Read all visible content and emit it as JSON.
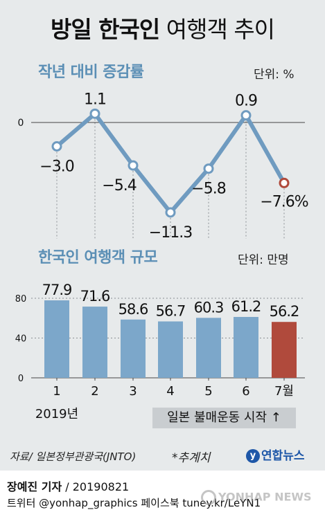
{
  "title": {
    "bold": "방일 한국인",
    "light": "여행객 추이"
  },
  "line_section": {
    "heading": "작년 대비 증감률",
    "unit": "단위: %"
  },
  "bar_section": {
    "heading": "한국인 여행객 규모",
    "unit": "단위: 만명"
  },
  "year_label": "2019년",
  "boycott_label": "일본 불매운동 시작 ↑",
  "source": "자료/ 일본정부관광국(JNTO)",
  "estimate_note": "*추계치",
  "logo_text": "연합뉴스",
  "credit": {
    "name": "장예진 기자",
    "date": " / 20190821"
  },
  "social": "트위터 @yonhap_graphics  페이스북 tuney.kr/LeYN1",
  "watermark": "YONHAP NEWS",
  "colors": {
    "line": "#6f9bc0",
    "bar": "#7ca7ca",
    "highlight": "#b04a3c",
    "heading": "#5b8fb5"
  },
  "chart_data": [
    {
      "type": "line",
      "title": "작년 대비 증감률",
      "unit": "%",
      "x": [
        "1",
        "2",
        "3",
        "4",
        "5",
        "6",
        "7"
      ],
      "values": [
        -3.0,
        1.1,
        -5.4,
        -11.3,
        -5.8,
        0.9,
        -7.6
      ],
      "value_labels": [
        "−3.0",
        "1.1",
        "−5.4",
        "−11.3",
        "−5.8",
        "0.9",
        "−7.6%"
      ],
      "reference_line": 0,
      "reference_label": "0",
      "highlight_index": 6
    },
    {
      "type": "bar",
      "title": "한국인 여행객 규모",
      "unit": "만명",
      "categories": [
        "1",
        "2",
        "3",
        "4",
        "5",
        "6",
        "7월"
      ],
      "values": [
        77.9,
        71.6,
        58.6,
        56.7,
        60.3,
        61.2,
        56.2
      ],
      "value_labels": [
        "77.9",
        "71.6",
        "58.6",
        "56.7",
        "60.3",
        "61.2",
        "56.2"
      ],
      "ylim": [
        0,
        80
      ],
      "yticks": [
        0,
        40,
        80
      ],
      "highlight_index": 6
    }
  ]
}
